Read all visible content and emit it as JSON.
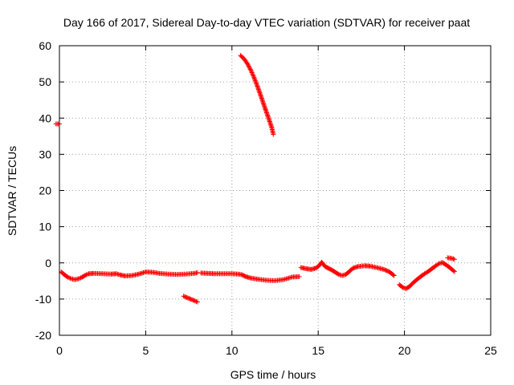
{
  "chart_data": {
    "type": "scatter",
    "title": "Day 166 of 2017, Sidereal Day-to-day VTEC variation (SDTVAR) for receiver paat",
    "xlabel": "GPS time / hours",
    "ylabel": "SDTVAR / TECUs",
    "xlim": [
      0,
      25
    ],
    "ylim": [
      -20,
      60
    ],
    "xticks": [
      0,
      5,
      10,
      15,
      20,
      25
    ],
    "yticks": [
      -20,
      -10,
      0,
      10,
      20,
      30,
      40,
      50,
      60
    ],
    "xtick_labels": [
      "0",
      "5",
      "10",
      "15",
      "20",
      25
    ],
    "ytick_labels": [
      "-20",
      "-10",
      "0",
      "10",
      "20",
      "30",
      "40",
      "50",
      "60"
    ],
    "grid": true,
    "marker": "+",
    "color": "#ff0000",
    "series": [
      {
        "name": "SDTVAR",
        "segments": [
          [
            [
              -0.2,
              38.4
            ],
            [
              0.0,
              38.4
            ]
          ],
          [
            [
              0.1,
              -2.5
            ],
            [
              0.3,
              -3.3
            ],
            [
              0.5,
              -4.0
            ],
            [
              0.7,
              -4.4
            ],
            [
              0.9,
              -4.6
            ],
            [
              1.1,
              -4.4
            ],
            [
              1.3,
              -4.0
            ],
            [
              1.5,
              -3.4
            ],
            [
              1.7,
              -3.0
            ],
            [
              2.0,
              -2.9
            ],
            [
              2.5,
              -3.0
            ],
            [
              3.0,
              -3.1
            ],
            [
              3.3,
              -3.0
            ],
            [
              3.5,
              -3.3
            ],
            [
              3.8,
              -3.6
            ],
            [
              4.2,
              -3.5
            ],
            [
              4.6,
              -3.1
            ],
            [
              5.0,
              -2.5
            ],
            [
              5.4,
              -2.6
            ],
            [
              5.8,
              -2.9
            ],
            [
              6.3,
              -3.1
            ],
            [
              6.8,
              -3.2
            ],
            [
              7.3,
              -3.1
            ],
            [
              7.8,
              -2.9
            ],
            [
              8.0,
              -2.7
            ]
          ],
          [
            [
              7.2,
              -9.2
            ],
            [
              7.5,
              -9.8
            ],
            [
              7.8,
              -10.4
            ],
            [
              8.0,
              -10.8
            ]
          ],
          [
            [
              8.2,
              -2.8
            ],
            [
              8.6,
              -2.9
            ],
            [
              9.0,
              -3.0
            ],
            [
              9.5,
              -3.0
            ],
            [
              10.0,
              -3.0
            ],
            [
              10.4,
              -3.1
            ],
            [
              10.6,
              -3.3
            ],
            [
              10.8,
              -3.8
            ],
            [
              11.1,
              -4.2
            ],
            [
              11.5,
              -4.5
            ],
            [
              12.0,
              -4.8
            ],
            [
              12.5,
              -4.9
            ],
            [
              13.0,
              -4.6
            ],
            [
              13.5,
              -3.9
            ],
            [
              13.9,
              -3.8
            ]
          ],
          [
            [
              10.5,
              57.3
            ],
            [
              10.7,
              56.4
            ],
            [
              10.9,
              55.0
            ],
            [
              11.1,
              53.2
            ],
            [
              11.3,
              51.0
            ],
            [
              11.5,
              48.5
            ],
            [
              11.7,
              45.8
            ],
            [
              11.9,
              43.0
            ],
            [
              12.1,
              40.3
            ],
            [
              12.3,
              37.5
            ],
            [
              12.4,
              35.5
            ]
          ],
          [
            [
              14.0,
              -1.3
            ],
            [
              14.3,
              -1.6
            ],
            [
              14.6,
              -1.8
            ],
            [
              14.9,
              -1.4
            ],
            [
              15.1,
              -0.5
            ],
            [
              15.2,
              0.2
            ],
            [
              15.4,
              -1.0
            ],
            [
              15.6,
              -1.5
            ],
            [
              15.8,
              -2.0
            ],
            [
              16.0,
              -2.6
            ],
            [
              16.2,
              -3.2
            ],
            [
              16.4,
              -3.5
            ],
            [
              16.6,
              -3.2
            ],
            [
              16.8,
              -2.4
            ],
            [
              17.0,
              -1.5
            ],
            [
              17.3,
              -1.0
            ],
            [
              17.7,
              -0.8
            ],
            [
              18.0,
              -0.9
            ],
            [
              18.4,
              -1.3
            ],
            [
              18.8,
              -1.8
            ],
            [
              19.1,
              -2.4
            ],
            [
              19.4,
              -3.5
            ]
          ],
          [
            [
              19.7,
              -6.0
            ],
            [
              19.9,
              -6.8
            ],
            [
              20.1,
              -7.1
            ],
            [
              20.3,
              -6.5
            ],
            [
              20.5,
              -5.5
            ],
            [
              20.8,
              -4.3
            ],
            [
              21.1,
              -3.2
            ],
            [
              21.4,
              -2.3
            ],
            [
              21.7,
              -1.2
            ],
            [
              22.0,
              -0.2
            ],
            [
              22.2,
              0.1
            ],
            [
              22.4,
              -0.5
            ],
            [
              22.6,
              -1.2
            ],
            [
              22.8,
              -2.0
            ],
            [
              22.9,
              -2.4
            ]
          ],
          [
            [
              22.5,
              1.4
            ],
            [
              22.7,
              1.3
            ],
            [
              22.9,
              1.0
            ]
          ]
        ]
      }
    ]
  }
}
